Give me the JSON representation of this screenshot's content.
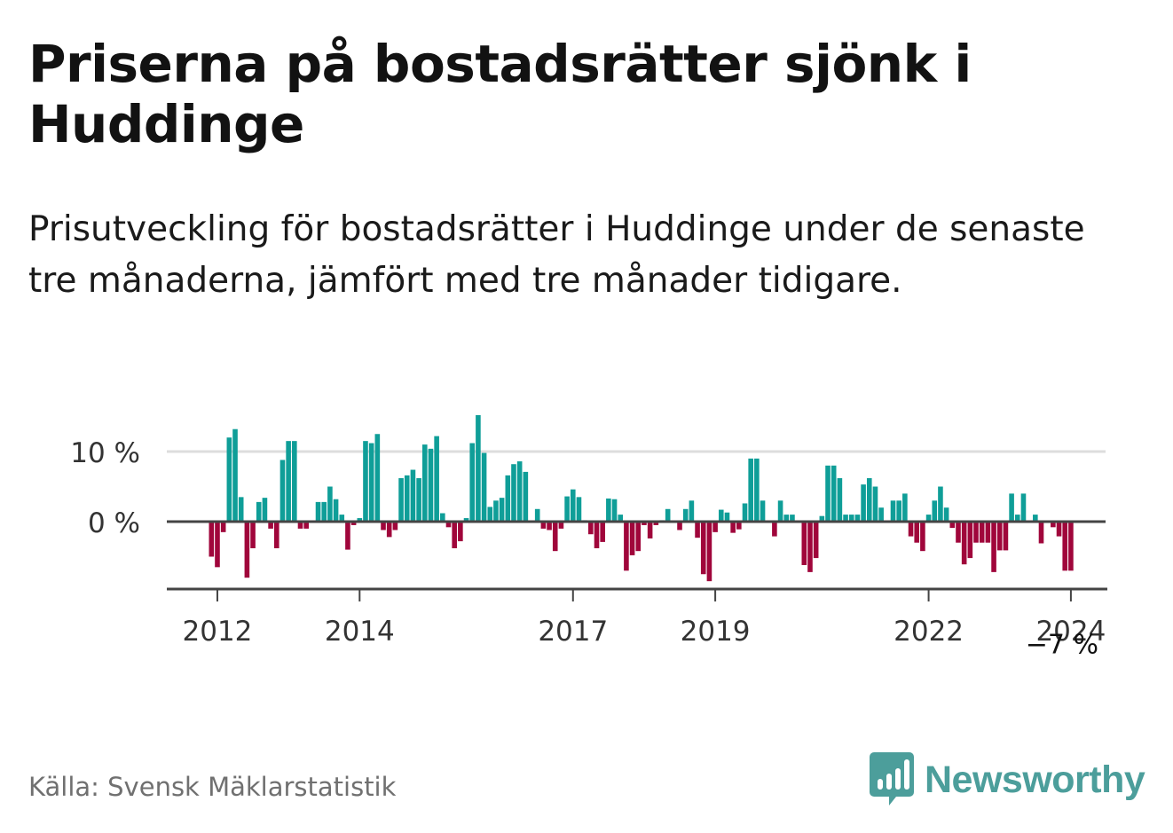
{
  "title": "Priserna på bostadsrätter sjönk i Huddinge",
  "subtitle": "Prisutveckling för bostadsrätter i Huddinge under de senaste tre månaderna, jämfört med tre månader tidigare.",
  "source": "Källa: Svensk Mäklarstatistik",
  "brand": {
    "name": "Newsworthy",
    "icon": "newsworthy-logo-icon"
  },
  "colors": {
    "positive": "#0f9e98",
    "negative": "#a0063b",
    "axis": "#444444",
    "grid": "#dddddd",
    "brand": "#4c9e9b"
  },
  "chart_data": {
    "type": "bar",
    "title": "",
    "xlabel": "",
    "ylabel": "",
    "ylim": [
      -9.5,
      15.5
    ],
    "yticks": [
      {
        "value": 0,
        "label": "0 %"
      },
      {
        "value": 10,
        "label": "10 %"
      }
    ],
    "xticks": [
      {
        "index": 1,
        "label": "2012"
      },
      {
        "index": 25,
        "label": "2014"
      },
      {
        "index": 61,
        "label": "2017"
      },
      {
        "index": 85,
        "label": "2019"
      },
      {
        "index": 121,
        "label": "2022"
      },
      {
        "index": 145,
        "label": "2024"
      }
    ],
    "last_value_label": "−7 %",
    "values": [
      -5,
      -6.5,
      -1.5,
      12,
      13.2,
      3.5,
      -8,
      -3.8,
      2.8,
      3.4,
      -1,
      -3.8,
      8.8,
      11.5,
      11.5,
      -1,
      -1,
      0,
      2.8,
      2.8,
      5,
      3.2,
      1,
      -4,
      -0.5,
      0.5,
      11.5,
      11.2,
      12.5,
      -1.2,
      -2.2,
      -1.2,
      6.2,
      6.6,
      7.4,
      6.2,
      11,
      10.4,
      12.2,
      1.2,
      -0.8,
      -3.8,
      -2.8,
      0.5,
      11.2,
      15.2,
      9.8,
      2.1,
      3,
      3.4,
      6.6,
      8.2,
      8.6,
      7.1,
      0,
      1.8,
      -1,
      -1.2,
      -4.2,
      -1,
      3.6,
      4.6,
      3.5,
      0.2,
      -1.8,
      -3.8,
      -2.9,
      3.3,
      3.2,
      1,
      -7,
      -4.8,
      -4.2,
      -0.5,
      -2.4,
      -0.5,
      0.2,
      1.8,
      0,
      -1.2,
      1.8,
      3,
      -2.3,
      -7.5,
      -8.5,
      -1.5,
      1.7,
      1.3,
      -1.6,
      -1.1,
      2.6,
      9,
      9,
      3,
      0,
      -2.1,
      3,
      1,
      1,
      0,
      -6.2,
      -7.2,
      -5.2,
      0.8,
      8,
      8,
      6.2,
      1,
      1,
      1,
      5.3,
      6.2,
      5,
      2,
      0,
      3,
      3,
      4,
      -2.1,
      -3,
      -4.2,
      1,
      3,
      5,
      2,
      -0.9,
      -3,
      -6.1,
      -5.2,
      -3,
      -3,
      -3,
      -7.2,
      -4.1,
      -4.1,
      4,
      1,
      4,
      0,
      1,
      -3.1,
      0,
      -0.8,
      -2.1,
      -7,
      -7
    ]
  }
}
